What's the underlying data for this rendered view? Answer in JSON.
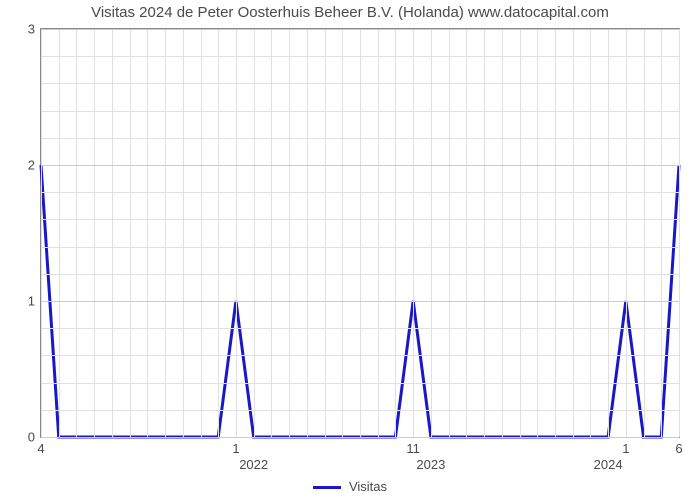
{
  "chart": {
    "type": "line",
    "title": "Visitas 2024 de Peter Oosterhuis Beheer B.V. (Holanda) www.datocapital.com",
    "title_fontsize": 15,
    "title_color": "#4a4a4a",
    "background_color": "#ffffff",
    "plot_border_color": "#888888",
    "grid_color": "#e0e0e0",
    "grid_major_color": "#cccccc",
    "series": {
      "name": "Visitas",
      "color": "#1818c8",
      "line_width": 3,
      "x": [
        0,
        1,
        2,
        3,
        4,
        5,
        6,
        7,
        8,
        9,
        10,
        11,
        12,
        13,
        14,
        15,
        16,
        17,
        18,
        19,
        20,
        21,
        22,
        23,
        24,
        25,
        26,
        27,
        28,
        29,
        30,
        31,
        32,
        33,
        34,
        35,
        36
      ],
      "y": [
        2,
        0,
        0,
        0,
        0,
        0,
        0,
        0,
        0,
        0,
        0,
        1,
        0,
        0,
        0,
        0,
        0,
        0,
        0,
        0,
        0,
        1,
        0,
        0,
        0,
        0,
        0,
        0,
        0,
        0,
        0,
        0,
        0,
        1,
        0,
        0,
        2
      ]
    },
    "x_axis": {
      "min": 0,
      "max": 36,
      "gridlines_at": [
        0,
        1,
        2,
        3,
        4,
        5,
        6,
        7,
        8,
        9,
        10,
        11,
        12,
        13,
        14,
        15,
        16,
        17,
        18,
        19,
        20,
        21,
        22,
        23,
        24,
        25,
        26,
        27,
        28,
        29,
        30,
        31,
        32,
        33,
        34,
        35,
        36
      ],
      "point_labels": [
        {
          "x": 0,
          "label": "4"
        },
        {
          "x": 11,
          "label": "1"
        },
        {
          "x": 21,
          "label": "11"
        },
        {
          "x": 33,
          "label": "1"
        },
        {
          "x": 36,
          "label": "6"
        }
      ],
      "year_labels": [
        {
          "x": 12,
          "label": "2022"
        },
        {
          "x": 22,
          "label": "2023"
        },
        {
          "x": 32,
          "label": "2024"
        }
      ]
    },
    "y_axis": {
      "min": 0,
      "max": 3,
      "ticks": [
        0,
        1,
        2,
        3
      ],
      "minor_step": 0.2,
      "label_fontsize": 13,
      "label_color": "#4a4a4a"
    },
    "legend": {
      "label": "Visitas",
      "swatch_color": "#1818c8"
    }
  }
}
